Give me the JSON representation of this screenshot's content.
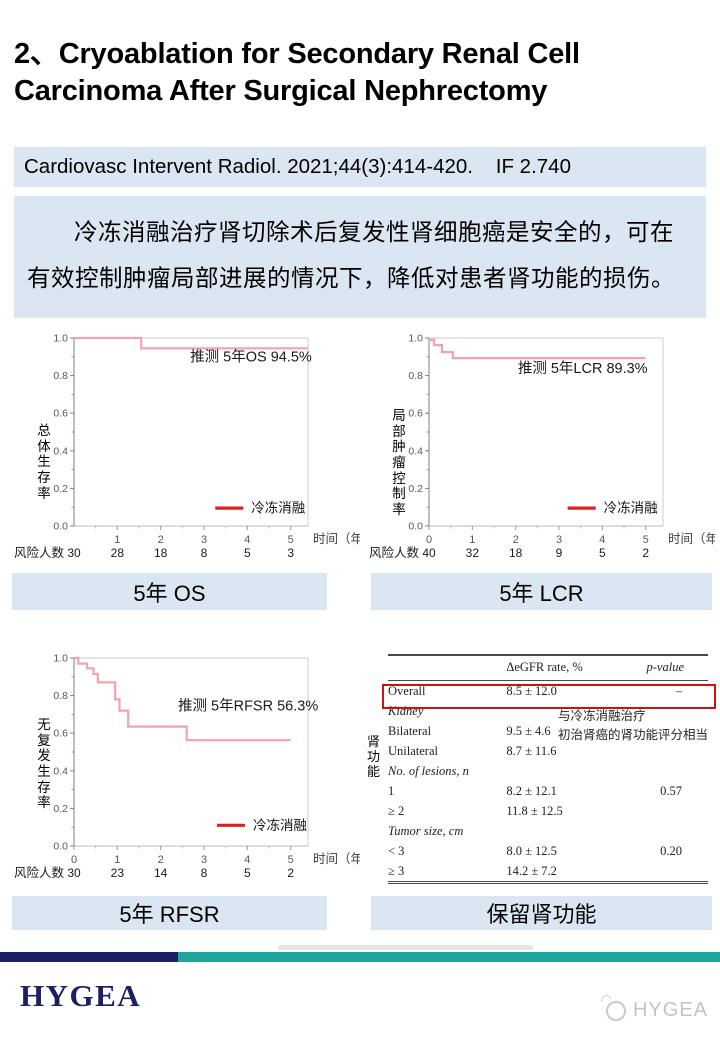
{
  "slide": {
    "title_line1": "2、Cryoablation for Secondary Renal Cell",
    "title_line2": "Carcinoma After Surgical Nephrectomy",
    "citation": "Cardiovasc Intervent Radiol. 2021;44(3):414-420.    IF 2.740",
    "summary": "冷冻消融治疗肾切除术后复发性肾细胞癌是安全的，可在有效控制肿瘤局部进展的情况下，降低对患者肾功能的损伤。"
  },
  "colors": {
    "light_blue": "#dae6f2",
    "navy": "#1b2065",
    "teal": "#1ea69e",
    "legend_red": "#e02020",
    "curve_pink": "#f2a3ad",
    "highlight_red": "#cc1111"
  },
  "chart_data": [
    {
      "type": "line",
      "subtype": "kaplan_meier_step",
      "caption": "5年 OS",
      "ylabel": "总体生存率",
      "xlabel": "时间（年）",
      "annotation": "推测 5年OS 94.5%",
      "annotation_pos": [
        2.68,
        0.875
      ],
      "legend": [
        {
          "name": "冷冻消融",
          "color": "#e02020"
        }
      ],
      "legend_pos": [
        3.26,
        0.095
      ],
      "risk_label": "风险人数",
      "risk_times": [
        0,
        1,
        2,
        3,
        4,
        5
      ],
      "risk_counts": [
        30,
        28,
        18,
        8,
        5,
        3
      ],
      "xticks": [
        1,
        2,
        3,
        4,
        5
      ],
      "xlim": [
        0,
        5.4
      ],
      "ylim": [
        0.0,
        1.0
      ],
      "yticks": [
        0.0,
        0.2,
        0.4,
        0.6,
        0.8,
        1.0
      ],
      "grid": false,
      "curve_color": "#f2a3ad",
      "steps": [
        [
          0,
          1.0
        ],
        [
          1.55,
          1.0
        ],
        [
          1.55,
          0.945
        ],
        [
          5.4,
          0.945
        ]
      ]
    },
    {
      "type": "line",
      "subtype": "kaplan_meier_step",
      "caption": "5年 LCR",
      "ylabel": "局部肿瘤控制率",
      "xlabel": "时间（年）",
      "annotation": "推测 5年LCR 89.3%",
      "annotation_pos": [
        2.05,
        0.815
      ],
      "legend": [
        {
          "name": "冷冻消融",
          "color": "#e02020"
        }
      ],
      "legend_pos": [
        3.2,
        0.095
      ],
      "risk_label": "风险人数",
      "risk_times": [
        0,
        1,
        2,
        3,
        4,
        5
      ],
      "risk_counts": [
        40,
        32,
        18,
        9,
        5,
        2
      ],
      "xticks": [
        0,
        1,
        2,
        3,
        4,
        5
      ],
      "xlim": [
        0,
        5.4
      ],
      "ylim": [
        0.0,
        1.0
      ],
      "yticks": [
        0.0,
        0.2,
        0.4,
        0.6,
        0.8,
        1.0
      ],
      "grid": false,
      "curve_color": "#f2a3ad",
      "steps": [
        [
          0,
          0.99
        ],
        [
          0.12,
          0.99
        ],
        [
          0.12,
          0.963
        ],
        [
          0.3,
          0.963
        ],
        [
          0.3,
          0.925
        ],
        [
          0.55,
          0.925
        ],
        [
          0.55,
          0.893
        ],
        [
          5.0,
          0.893
        ]
      ]
    },
    {
      "type": "line",
      "subtype": "kaplan_meier_step",
      "caption": "5年 RFSR",
      "ylabel": "无复发生存率",
      "xlabel": "时间（年）",
      "annotation": "推测 5年RFSR 56.3%",
      "annotation_pos": [
        2.4,
        0.72
      ],
      "legend": [
        {
          "name": "冷冻消融",
          "color": "#e02020"
        }
      ],
      "legend_pos": [
        3.3,
        0.11
      ],
      "risk_label": "风险人数",
      "risk_times": [
        0,
        1,
        2,
        3,
        4,
        5
      ],
      "risk_counts": [
        30,
        23,
        14,
        8,
        5,
        2
      ],
      "xticks": [
        0,
        1,
        2,
        3,
        4,
        5
      ],
      "xlim": [
        0,
        5.4
      ],
      "ylim": [
        0.0,
        1.0
      ],
      "yticks": [
        0.0,
        0.2,
        0.4,
        0.6,
        0.8,
        1.0
      ],
      "grid": false,
      "curve_color": "#f2a3ad",
      "steps": [
        [
          0,
          1.0
        ],
        [
          0.1,
          1.0
        ],
        [
          0.1,
          0.97
        ],
        [
          0.3,
          0.97
        ],
        [
          0.3,
          0.945
        ],
        [
          0.45,
          0.945
        ],
        [
          0.45,
          0.915
        ],
        [
          0.55,
          0.915
        ],
        [
          0.55,
          0.87
        ],
        [
          0.95,
          0.87
        ],
        [
          0.95,
          0.78
        ],
        [
          1.05,
          0.78
        ],
        [
          1.05,
          0.72
        ],
        [
          1.25,
          0.72
        ],
        [
          1.25,
          0.635
        ],
        [
          2.6,
          0.635
        ],
        [
          2.6,
          0.563
        ],
        [
          5.0,
          0.563
        ]
      ]
    },
    {
      "type": "table",
      "caption": "保留肾功能",
      "side_label": "肾功能",
      "columns": [
        "",
        "ΔeGFR rate, %",
        "p-value"
      ],
      "rows": [
        {
          "label": "Overall",
          "egfr": "8.5 ± 12.0",
          "p": "–",
          "highlight": true
        },
        {
          "label": "Kidney",
          "egfr": "",
          "p": "",
          "group": true
        },
        {
          "label": "Bilateral",
          "egfr": "9.5 ± 4.6",
          "p": ""
        },
        {
          "label": "Unilateral",
          "egfr": "8.7 ± 11.6",
          "p": ""
        },
        {
          "label": "No. of lesions, n",
          "egfr": "",
          "p": "",
          "group": true
        },
        {
          "label": "1",
          "egfr": "8.2 ± 12.1",
          "p": "0.57"
        },
        {
          "label": "≥ 2",
          "egfr": "11.8 ± 12.5",
          "p": ""
        },
        {
          "label": "Tumor size, cm",
          "egfr": "",
          "p": "",
          "group": true
        },
        {
          "label": "< 3",
          "egfr": "8.0 ± 12.5",
          "p": "0.20"
        },
        {
          "label": "≥ 3",
          "egfr": "14.2 ± 7.2",
          "p": ""
        }
      ],
      "annotation": "与冷冻消融治疗\n初治肾癌的肾功能评分相当"
    }
  ],
  "footer": {
    "logo_text": "HYGEA",
    "watermark_text": "HYGEA"
  }
}
